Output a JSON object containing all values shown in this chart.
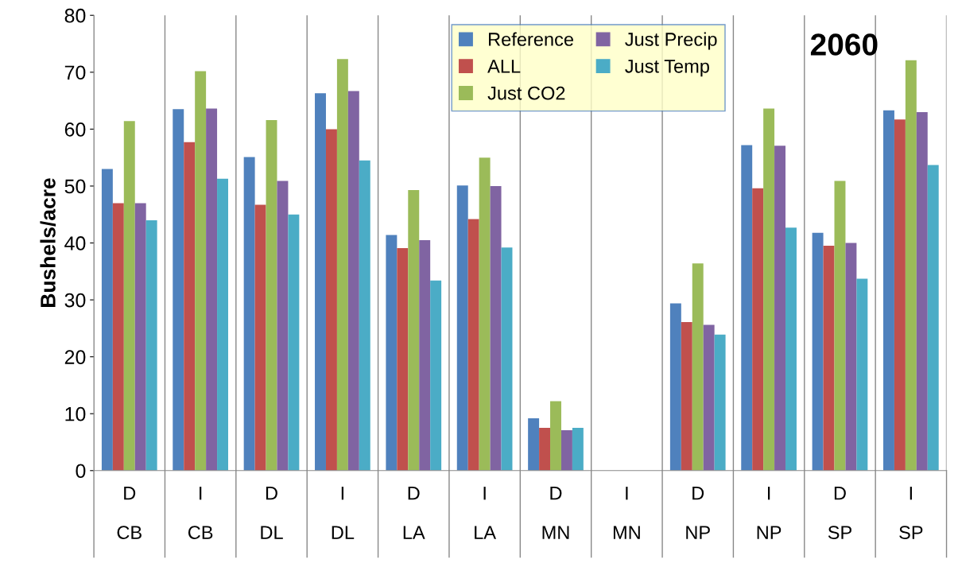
{
  "chart_data": {
    "type": "bar",
    "ylabel": "Bushels/acre",
    "categories": [
      "D\nCB",
      "I\nCB",
      "D\nDL",
      "I\nDL",
      "D\nLA",
      "I\nLA",
      "D\nMN",
      "I\nMN",
      "D\nNP",
      "I\nNP",
      "D\nSP",
      "I\nSP"
    ],
    "series": [
      {
        "name": "Reference",
        "color": "#4f81bd",
        "values": [
          53,
          63.5,
          55.1,
          66.3,
          41.4,
          50.1,
          9.2,
          null,
          29.4,
          57.2,
          41.8,
          63.3
        ]
      },
      {
        "name": "ALL",
        "color": "#c0504d",
        "values": [
          47,
          57.7,
          46.7,
          60,
          39.1,
          44.2,
          7.5,
          null,
          26.1,
          49.6,
          39.5,
          61.7
        ]
      },
      {
        "name": "Just CO2",
        "color": "#9bbb59",
        "values": [
          61.4,
          70.2,
          61.6,
          72.3,
          49.3,
          55,
          12.2,
          null,
          36.4,
          63.6,
          50.9,
          72.1
        ]
      },
      {
        "name": "Just Precip",
        "color": "#8064a2",
        "values": [
          47,
          63.6,
          50.9,
          66.7,
          40.5,
          50,
          7.1,
          null,
          25.6,
          57.1,
          40,
          63
        ]
      },
      {
        "name": "Just Temp",
        "color": "#4bacc6",
        "values": [
          44,
          51.3,
          45,
          54.5,
          33.4,
          39.2,
          7.5,
          null,
          23.9,
          42.7,
          33.7,
          53.7
        ]
      }
    ],
    "ylim": [
      0,
      80
    ],
    "yticks": [
      0,
      10,
      20,
      30,
      40,
      50,
      60,
      70,
      80
    ],
    "grid": "x",
    "legend": "top",
    "annotations": [
      "2060"
    ]
  }
}
